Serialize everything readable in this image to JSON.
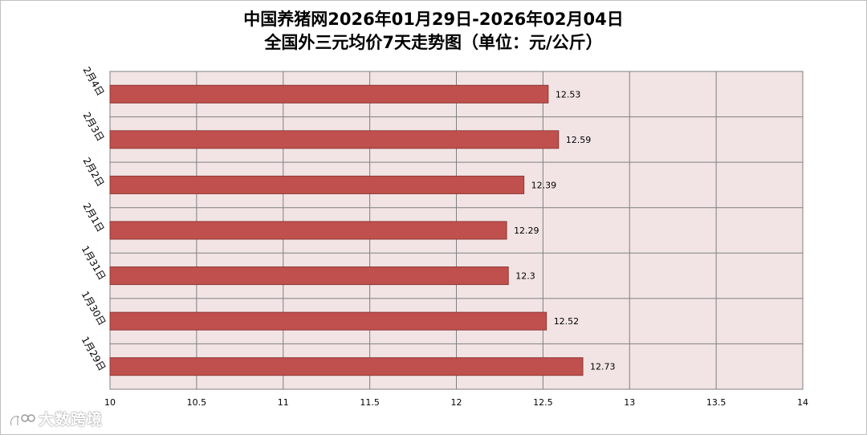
{
  "chart_data": {
    "type": "bar",
    "orientation": "horizontal",
    "title": "中国养猪网2026年01月29日-2026年02月04日",
    "subtitle": "全国外三元均价7天走势图（单位：元/公斤）",
    "categories": [
      "2月4日",
      "2月3日",
      "2月2日",
      "2月1日",
      "1月31日",
      "1月30日",
      "1月29日"
    ],
    "values": [
      12.53,
      12.59,
      12.39,
      12.29,
      12.3,
      12.52,
      12.73
    ],
    "value_labels": [
      "12.53",
      "12.59",
      "12.39",
      "12.29",
      "12.3",
      "12.52",
      "12.73"
    ],
    "x_ticks": [
      "10",
      "10.5",
      "11",
      "11.5",
      "12",
      "12.5",
      "13",
      "13.5",
      "14"
    ],
    "xlim": [
      10,
      14
    ],
    "xlabel": "",
    "ylabel": "",
    "grid": true,
    "bar_color": "#c0504d",
    "plot_background": "#f2e4e4"
  },
  "watermark": {
    "text": "大数跨境",
    "icon": "watermark-logo-icon"
  }
}
